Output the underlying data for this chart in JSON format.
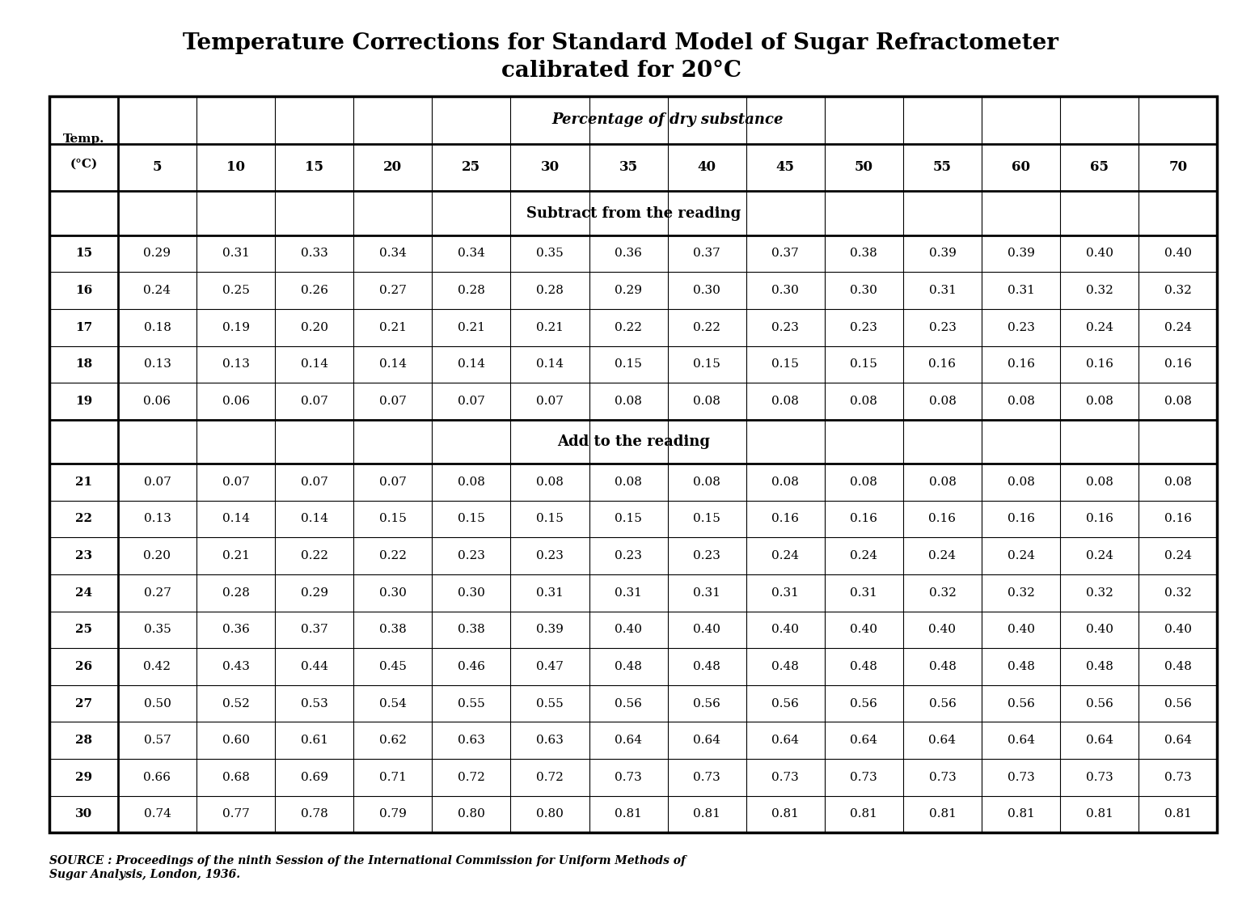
{
  "title_line1": "Temperature Corrections for Standard Model of Sugar Refractometer",
  "title_line2": "calibrated for 20°C",
  "col_headers": [
    "Temp.\n(°C)",
    "5",
    "10",
    "15",
    "20",
    "25",
    "30",
    "35",
    "40",
    "45",
    "50",
    "55",
    "60",
    "65",
    "70"
  ],
  "section_subtract": "Subtract from the reading",
  "section_add": "Add to the reading",
  "subtract_rows": [
    [
      "15",
      "0.29",
      "0.31",
      "0.33",
      "0.34",
      "0.34",
      "0.35",
      "0.36",
      "0.37",
      "0.37",
      "0.38",
      "0.39",
      "0.39",
      "0.40",
      "0.40"
    ],
    [
      "16",
      "0.24",
      "0.25",
      "0.26",
      "0.27",
      "0.28",
      "0.28",
      "0.29",
      "0.30",
      "0.30",
      "0.30",
      "0.31",
      "0.31",
      "0.32",
      "0.32"
    ],
    [
      "17",
      "0.18",
      "0.19",
      "0.20",
      "0.21",
      "0.21",
      "0.21",
      "0.22",
      "0.22",
      "0.23",
      "0.23",
      "0.23",
      "0.23",
      "0.24",
      "0.24"
    ],
    [
      "18",
      "0.13",
      "0.13",
      "0.14",
      "0.14",
      "0.14",
      "0.14",
      "0.15",
      "0.15",
      "0.15",
      "0.15",
      "0.16",
      "0.16",
      "0.16",
      "0.16"
    ],
    [
      "19",
      "0.06",
      "0.06",
      "0.07",
      "0.07",
      "0.07",
      "0.07",
      "0.08",
      "0.08",
      "0.08",
      "0.08",
      "0.08",
      "0.08",
      "0.08",
      "0.08"
    ]
  ],
  "add_rows": [
    [
      "21",
      "0.07",
      "0.07",
      "0.07",
      "0.07",
      "0.08",
      "0.08",
      "0.08",
      "0.08",
      "0.08",
      "0.08",
      "0.08",
      "0.08",
      "0.08",
      "0.08"
    ],
    [
      "22",
      "0.13",
      "0.14",
      "0.14",
      "0.15",
      "0.15",
      "0.15",
      "0.15",
      "0.15",
      "0.16",
      "0.16",
      "0.16",
      "0.16",
      "0.16",
      "0.16"
    ],
    [
      "23",
      "0.20",
      "0.21",
      "0.22",
      "0.22",
      "0.23",
      "0.23",
      "0.23",
      "0.23",
      "0.24",
      "0.24",
      "0.24",
      "0.24",
      "0.24",
      "0.24"
    ],
    [
      "24",
      "0.27",
      "0.28",
      "0.29",
      "0.30",
      "0.30",
      "0.31",
      "0.31",
      "0.31",
      "0.31",
      "0.31",
      "0.32",
      "0.32",
      "0.32",
      "0.32"
    ],
    [
      "25",
      "0.35",
      "0.36",
      "0.37",
      "0.38",
      "0.38",
      "0.39",
      "0.40",
      "0.40",
      "0.40",
      "0.40",
      "0.40",
      "0.40",
      "0.40",
      "0.40"
    ],
    [
      "26",
      "0.42",
      "0.43",
      "0.44",
      "0.45",
      "0.46",
      "0.47",
      "0.48",
      "0.48",
      "0.48",
      "0.48",
      "0.48",
      "0.48",
      "0.48",
      "0.48"
    ],
    [
      "27",
      "0.50",
      "0.52",
      "0.53",
      "0.54",
      "0.55",
      "0.55",
      "0.56",
      "0.56",
      "0.56",
      "0.56",
      "0.56",
      "0.56",
      "0.56",
      "0.56"
    ],
    [
      "28",
      "0.57",
      "0.60",
      "0.61",
      "0.62",
      "0.63",
      "0.63",
      "0.64",
      "0.64",
      "0.64",
      "0.64",
      "0.64",
      "0.64",
      "0.64",
      "0.64"
    ],
    [
      "29",
      "0.66",
      "0.68",
      "0.69",
      "0.71",
      "0.72",
      "0.72",
      "0.73",
      "0.73",
      "0.73",
      "0.73",
      "0.73",
      "0.73",
      "0.73",
      "0.73"
    ],
    [
      "30",
      "0.74",
      "0.77",
      "0.78",
      "0.79",
      "0.80",
      "0.80",
      "0.81",
      "0.81",
      "0.81",
      "0.81",
      "0.81",
      "0.81",
      "0.81",
      "0.81"
    ]
  ],
  "percentage_header": "Percentage of dry substance",
  "source_text": "SOURCE : Proceedings of the ninth Session of the International Commission for Uniform Methods of\nSugar Analysis, London, 1936.",
  "bg_color": "#ffffff",
  "text_color": "#000000",
  "border_color": "#000000"
}
